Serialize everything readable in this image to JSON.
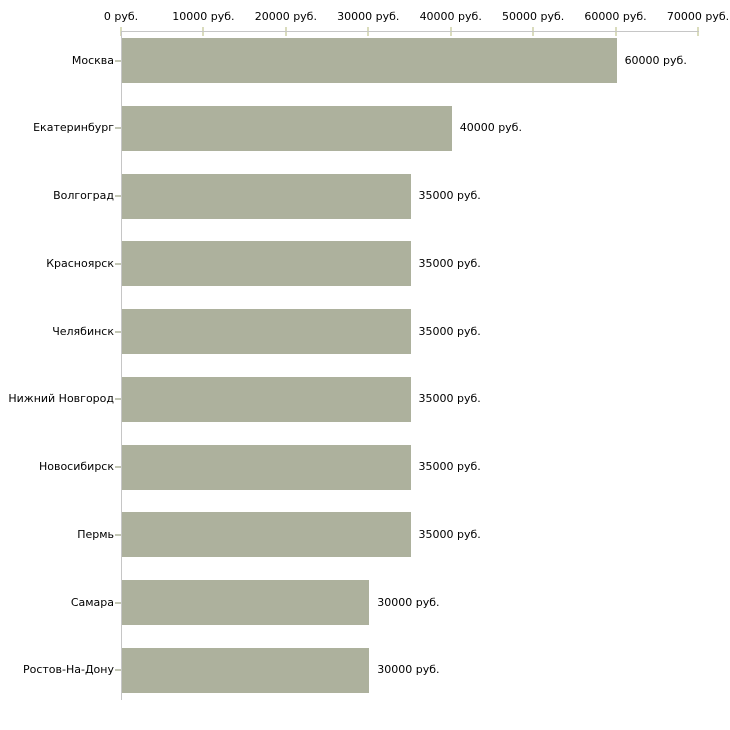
{
  "chart_data": {
    "type": "bar",
    "orientation": "horizontal",
    "title": "",
    "xlabel": "",
    "ylabel": "",
    "xlim": [
      0,
      70000
    ],
    "grid": false,
    "legend": "none",
    "x_ticks": [
      {
        "value": 0,
        "label": "0 руб."
      },
      {
        "value": 10000,
        "label": "10000 руб."
      },
      {
        "value": 20000,
        "label": "20000 руб."
      },
      {
        "value": 30000,
        "label": "30000 руб."
      },
      {
        "value": 40000,
        "label": "40000 руб."
      },
      {
        "value": 50000,
        "label": "50000 руб."
      },
      {
        "value": 60000,
        "label": "60000 руб."
      },
      {
        "value": 70000,
        "label": "70000 руб."
      }
    ],
    "categories": [
      "Москва",
      "Екатеринбург",
      "Волгоград",
      "Красноярск",
      "Челябинск",
      "Нижний Новгород",
      "Новосибирск",
      "Пермь",
      "Самара",
      "Ростов-На-Дону"
    ],
    "values": [
      60000,
      40000,
      35000,
      35000,
      35000,
      35000,
      35000,
      35000,
      30000,
      30000
    ],
    "bars": [
      {
        "category": "Москва",
        "value": 60000,
        "label": "60000 руб."
      },
      {
        "category": "Екатеринбург",
        "value": 40000,
        "label": "40000 руб."
      },
      {
        "category": "Волгоград",
        "value": 35000,
        "label": "35000 руб."
      },
      {
        "category": "Красноярск",
        "value": 35000,
        "label": "35000 руб."
      },
      {
        "category": "Челябинск",
        "value": 35000,
        "label": "35000 руб."
      },
      {
        "category": "Нижний Новгород",
        "value": 35000,
        "label": "35000 руб."
      },
      {
        "category": "Новосибирск",
        "value": 35000,
        "label": "35000 руб."
      },
      {
        "category": "Пермь",
        "value": 35000,
        "label": "35000 руб."
      },
      {
        "category": "Самара",
        "value": 30000,
        "label": "30000 руб."
      },
      {
        "category": "Ростов-На-Дону",
        "value": 30000,
        "label": "30000 руб."
      }
    ],
    "colors": {
      "bar": "#adb19d",
      "axis_line": "#c6c6c6",
      "x_tick": "#dadcbd",
      "category_tick": "#c3c7b5",
      "text": "#000000",
      "background": "#ffffff"
    }
  }
}
